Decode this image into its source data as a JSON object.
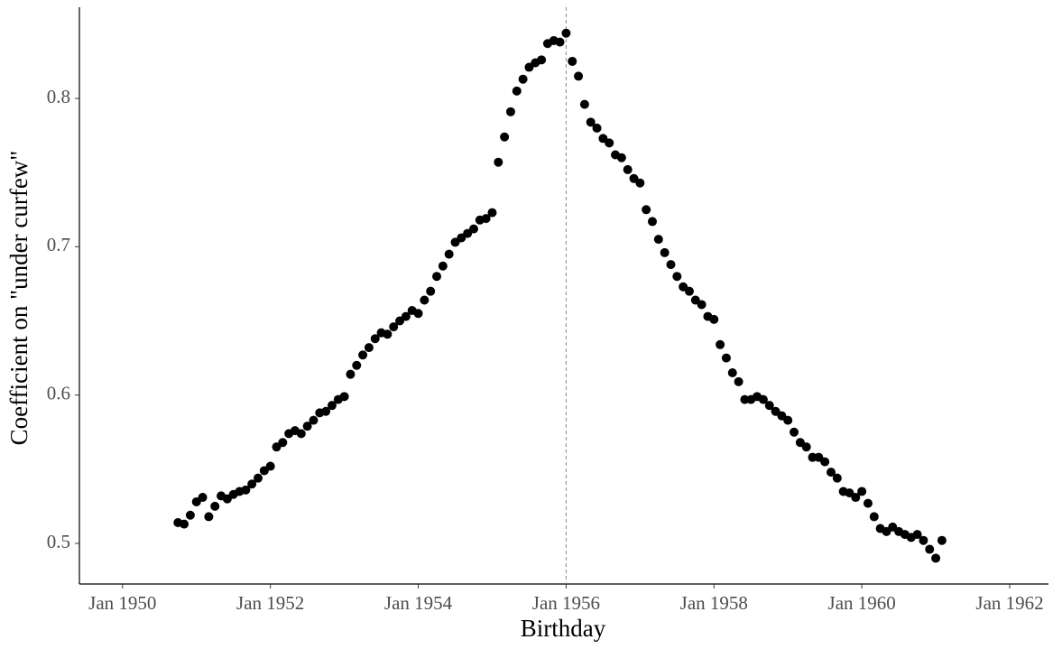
{
  "chart_data": {
    "type": "scatter",
    "x_label": "Birthday",
    "y_label": "Coefficient on \"under curfew\"",
    "x": [
      "1950-10",
      "1950-11",
      "1950-12",
      "1951-01",
      "1951-02",
      "1951-03",
      "1951-04",
      "1951-05",
      "1951-06",
      "1951-07",
      "1951-08",
      "1951-09",
      "1951-10",
      "1951-11",
      "1951-12",
      "1952-01",
      "1952-02",
      "1952-03",
      "1952-04",
      "1952-05",
      "1952-06",
      "1952-07",
      "1952-08",
      "1952-09",
      "1952-10",
      "1952-11",
      "1952-12",
      "1953-01",
      "1953-02",
      "1953-03",
      "1953-04",
      "1953-05",
      "1953-06",
      "1953-07",
      "1953-08",
      "1953-09",
      "1953-10",
      "1953-11",
      "1953-12",
      "1954-01",
      "1954-02",
      "1954-03",
      "1954-04",
      "1954-05",
      "1954-06",
      "1954-07",
      "1954-08",
      "1954-09",
      "1954-10",
      "1954-11",
      "1954-12",
      "1955-01",
      "1955-02",
      "1955-03",
      "1955-04",
      "1955-05",
      "1955-06",
      "1955-07",
      "1955-08",
      "1955-09",
      "1955-10",
      "1955-11",
      "1955-12",
      "1956-01",
      "1956-02",
      "1956-03",
      "1956-04",
      "1956-05",
      "1956-06",
      "1956-07",
      "1956-08",
      "1956-09",
      "1956-10",
      "1956-11",
      "1956-12",
      "1957-01",
      "1957-02",
      "1957-03",
      "1957-04",
      "1957-05",
      "1957-06",
      "1957-07",
      "1957-08",
      "1957-09",
      "1957-10",
      "1957-11",
      "1957-12",
      "1958-01",
      "1958-02",
      "1958-03",
      "1958-04",
      "1958-05",
      "1958-06",
      "1958-07",
      "1958-08",
      "1958-09",
      "1958-10",
      "1958-11",
      "1958-12",
      "1959-01",
      "1959-02",
      "1959-03",
      "1959-04",
      "1959-05",
      "1959-06",
      "1959-07",
      "1959-08",
      "1959-09",
      "1959-10",
      "1959-11",
      "1959-12",
      "1960-01",
      "1960-02",
      "1960-03",
      "1960-04",
      "1960-05",
      "1960-06",
      "1960-07",
      "1960-08",
      "1960-09",
      "1960-10",
      "1960-11",
      "1960-12",
      "1961-01",
      "1961-02"
    ],
    "values": [
      0.514,
      0.513,
      0.519,
      0.528,
      0.531,
      0.518,
      0.525,
      0.532,
      0.53,
      0.533,
      0.535,
      0.536,
      0.54,
      0.544,
      0.549,
      0.552,
      0.565,
      0.568,
      0.574,
      0.576,
      0.574,
      0.579,
      0.583,
      0.588,
      0.589,
      0.593,
      0.597,
      0.599,
      0.614,
      0.62,
      0.627,
      0.632,
      0.638,
      0.642,
      0.641,
      0.646,
      0.65,
      0.653,
      0.657,
      0.655,
      0.664,
      0.67,
      0.68,
      0.687,
      0.695,
      0.703,
      0.706,
      0.709,
      0.712,
      0.718,
      0.719,
      0.723,
      0.757,
      0.774,
      0.791,
      0.805,
      0.813,
      0.821,
      0.824,
      0.826,
      0.837,
      0.839,
      0.838,
      0.844,
      0.825,
      0.815,
      0.796,
      0.784,
      0.78,
      0.773,
      0.77,
      0.762,
      0.76,
      0.752,
      0.746,
      0.743,
      0.725,
      0.717,
      0.705,
      0.696,
      0.688,
      0.68,
      0.673,
      0.67,
      0.664,
      0.661,
      0.653,
      0.651,
      0.634,
      0.625,
      0.615,
      0.609,
      0.597,
      0.597,
      0.599,
      0.597,
      0.593,
      0.589,
      0.586,
      0.583,
      0.575,
      0.568,
      0.565,
      0.558,
      0.558,
      0.555,
      0.548,
      0.544,
      0.535,
      0.534,
      0.531,
      0.535,
      0.527,
      0.518,
      0.51,
      0.508,
      0.511,
      0.508,
      0.506,
      0.504,
      0.506,
      0.502,
      0.496,
      0.49,
      0.502
    ],
    "color": "#000000",
    "xlim": [
      "1949-06",
      "1962-07"
    ],
    "xticks": [
      {
        "value": "1950-01",
        "label": "Jan 1950"
      },
      {
        "value": "1952-01",
        "label": "Jan 1952"
      },
      {
        "value": "1954-01",
        "label": "Jan 1954"
      },
      {
        "value": "1956-01",
        "label": "Jan 1956"
      },
      {
        "value": "1958-01",
        "label": "Jan 1958"
      },
      {
        "value": "1960-01",
        "label": "Jan 1960"
      },
      {
        "value": "1962-01",
        "label": "Jan 1962"
      }
    ],
    "ylim": [
      0.4726,
      0.8615
    ],
    "yticks": [
      0.5,
      0.6,
      0.7,
      0.8
    ],
    "vline": "1956-01",
    "grid": false
  }
}
